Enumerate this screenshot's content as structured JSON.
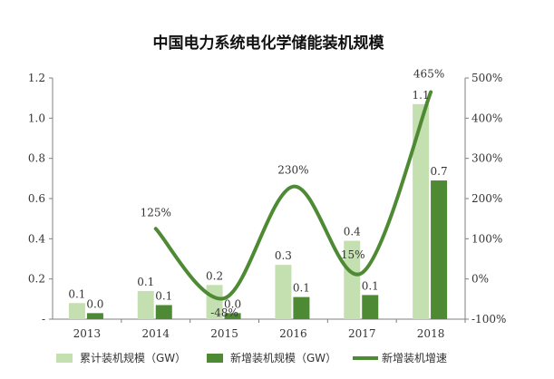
{
  "chart_data": {
    "type": "bar",
    "title": "中国电力系统电化学储能装机规模",
    "categories": [
      "2013",
      "2014",
      "2015",
      "2016",
      "2017",
      "2018"
    ],
    "series": [
      {
        "name": "累计装机规模（GW）",
        "type": "bar",
        "axis": "left",
        "color": "#c5e0b0",
        "values": [
          0.08,
          0.14,
          0.17,
          0.27,
          0.39,
          1.07
        ],
        "labels": [
          "0.1",
          "0.1",
          "0.2",
          "0.3",
          "0.4",
          "1.1"
        ]
      },
      {
        "name": "新增装机规模（GW）",
        "type": "bar",
        "axis": "left",
        "color": "#4e8a34",
        "values": [
          0.03,
          0.07,
          0.03,
          0.11,
          0.12,
          0.69
        ],
        "labels": [
          "0.0",
          "0.1",
          "0.0",
          "0.1",
          "0.1",
          "0.7"
        ]
      },
      {
        "name": "新增装机增速",
        "type": "line",
        "axis": "right",
        "color": "#4e8a34",
        "values": [
          null,
          125,
          -48,
          230,
          15,
          465
        ],
        "labels": [
          "",
          "125%",
          "-48%",
          "230%",
          "15%",
          "465%"
        ]
      }
    ],
    "y_left": {
      "ylim": [
        0,
        1.2
      ],
      "ticks": [
        0,
        0.2,
        0.4,
        0.6,
        0.8,
        1.0,
        1.2
      ],
      "tick_labels": [
        "-",
        "0.2",
        "0.4",
        "0.6",
        "0.8",
        "1.0",
        "1.2"
      ]
    },
    "y_right": {
      "ylim": [
        -100,
        500
      ],
      "ticks": [
        -100,
        0,
        100,
        200,
        300,
        400,
        500
      ],
      "tick_labels": [
        "-100%",
        "0%",
        "100%",
        "200%",
        "300%",
        "400%",
        "500%"
      ]
    },
    "grid": false,
    "legend_position": "bottom"
  }
}
